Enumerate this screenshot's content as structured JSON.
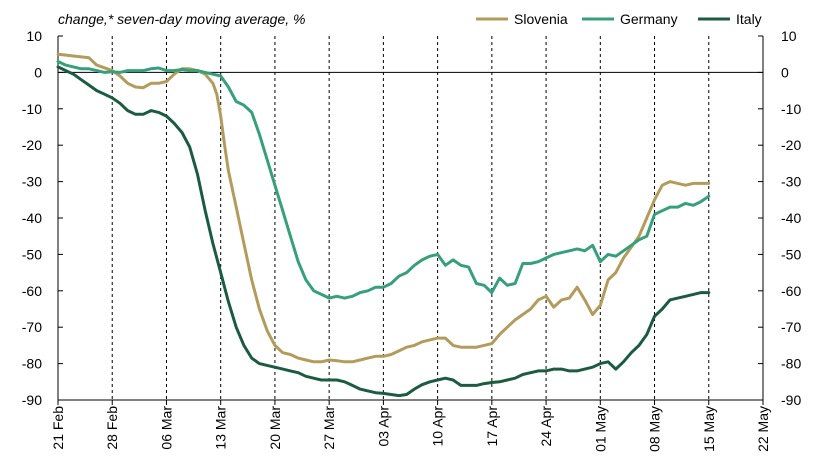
{
  "chart_data": {
    "type": "line",
    "y_axis_label": "change,* seven-day moving average, %",
    "ylim": [
      -90,
      10
    ],
    "y_ticks": [
      10,
      0,
      -10,
      -20,
      -30,
      -40,
      -50,
      -60,
      -70,
      -80,
      -90
    ],
    "x_tick_labels": [
      "21 Feb",
      "28 Feb",
      "06 Mar",
      "13 Mar",
      "20 Mar",
      "27 Mar",
      "03 Apr",
      "10 Apr",
      "17 Apr",
      "24 Apr",
      "01 May",
      "08 May",
      "15 May",
      "22 May"
    ],
    "x_tick_days": [
      0,
      7,
      14,
      21,
      28,
      35,
      42,
      49,
      56,
      63,
      70,
      77,
      84,
      91
    ],
    "xlim_days": [
      0,
      91
    ],
    "grid": "vertical dashed lines at each x tick",
    "legend_position": "top-right",
    "series": [
      {
        "name": "Slovenia",
        "color": "#b39b5b",
        "points": [
          [
            0,
            5
          ],
          [
            2,
            4.5
          ],
          [
            4,
            4
          ],
          [
            5,
            2
          ],
          [
            7,
            0.5
          ],
          [
            8,
            -1
          ],
          [
            9,
            -3
          ],
          [
            10,
            -4
          ],
          [
            11,
            -4.2
          ],
          [
            12,
            -3
          ],
          [
            13,
            -3
          ],
          [
            14,
            -2.5
          ],
          [
            15,
            -0.5
          ],
          [
            16,
            1
          ],
          [
            17,
            1
          ],
          [
            18,
            0.5
          ],
          [
            19,
            -0.5
          ],
          [
            20,
            -3
          ],
          [
            20.5,
            -6
          ],
          [
            21,
            -12
          ],
          [
            21.5,
            -20
          ],
          [
            22,
            -27
          ],
          [
            23,
            -37
          ],
          [
            24,
            -47
          ],
          [
            25,
            -57
          ],
          [
            26,
            -65
          ],
          [
            27,
            -71
          ],
          [
            28,
            -75
          ],
          [
            29,
            -77
          ],
          [
            30,
            -77.5
          ],
          [
            31,
            -78.5
          ],
          [
            32,
            -79
          ],
          [
            33,
            -79.5
          ],
          [
            34,
            -79.5
          ],
          [
            35,
            -79
          ],
          [
            36,
            -79.2
          ],
          [
            37,
            -79.5
          ],
          [
            38,
            -79.5
          ],
          [
            39,
            -79
          ],
          [
            40,
            -78.5
          ],
          [
            41,
            -78
          ],
          [
            42,
            -78
          ],
          [
            43,
            -77.5
          ],
          [
            44,
            -76.5
          ],
          [
            45,
            -75.5
          ],
          [
            46,
            -75
          ],
          [
            47,
            -74
          ],
          [
            48,
            -73.5
          ],
          [
            49,
            -73
          ],
          [
            50,
            -73
          ],
          [
            51,
            -75
          ],
          [
            52,
            -75.5
          ],
          [
            53,
            -75.5
          ],
          [
            54,
            -75.5
          ],
          [
            55,
            -75
          ],
          [
            56,
            -74.5
          ],
          [
            57,
            -72
          ],
          [
            58,
            -70
          ],
          [
            59,
            -68
          ],
          [
            60,
            -66.5
          ],
          [
            61,
            -65
          ],
          [
            62,
            -62.5
          ],
          [
            63,
            -61.5
          ],
          [
            64,
            -64.5
          ],
          [
            65,
            -62.5
          ],
          [
            66,
            -62
          ],
          [
            67,
            -59
          ],
          [
            68,
            -62.5
          ],
          [
            69,
            -66.5
          ],
          [
            70,
            -64
          ],
          [
            71,
            -57
          ],
          [
            72,
            -55
          ],
          [
            73,
            -51
          ],
          [
            74,
            -48
          ],
          [
            75,
            -45
          ],
          [
            76,
            -40
          ],
          [
            77,
            -35
          ],
          [
            78,
            -31
          ],
          [
            79,
            -30
          ],
          [
            80,
            -30.5
          ],
          [
            81,
            -31
          ],
          [
            82,
            -30.5
          ],
          [
            83,
            -30.5
          ],
          [
            84,
            -30.5
          ]
        ]
      },
      {
        "name": "Germany",
        "color": "#35a07a",
        "points": [
          [
            0,
            3
          ],
          [
            1,
            2
          ],
          [
            2,
            1.5
          ],
          [
            3,
            1
          ],
          [
            4,
            1
          ],
          [
            5,
            0.5
          ],
          [
            6,
            0
          ],
          [
            7,
            0.2
          ],
          [
            8,
            0
          ],
          [
            9,
            0.5
          ],
          [
            10,
            0.5
          ],
          [
            11,
            0.5
          ],
          [
            12,
            1
          ],
          [
            13,
            1.2
          ],
          [
            14,
            0.5
          ],
          [
            15,
            0.5
          ],
          [
            16,
            0.8
          ],
          [
            17,
            0.5
          ],
          [
            18,
            0.5
          ],
          [
            19,
            0
          ],
          [
            20,
            -0.5
          ],
          [
            21,
            -1
          ],
          [
            22,
            -4
          ],
          [
            23,
            -8
          ],
          [
            24,
            -9
          ],
          [
            25,
            -11
          ],
          [
            26,
            -17
          ],
          [
            27,
            -24
          ],
          [
            28,
            -31
          ],
          [
            29,
            -38
          ],
          [
            30,
            -45
          ],
          [
            31,
            -52
          ],
          [
            32,
            -57
          ],
          [
            33,
            -60
          ],
          [
            34,
            -61
          ],
          [
            35,
            -62
          ],
          [
            36,
            -61.5
          ],
          [
            37,
            -62
          ],
          [
            38,
            -61.5
          ],
          [
            39,
            -60.5
          ],
          [
            40,
            -60
          ],
          [
            41,
            -59
          ],
          [
            42,
            -59
          ],
          [
            43,
            -58
          ],
          [
            44,
            -56
          ],
          [
            45,
            -55
          ],
          [
            46,
            -53
          ],
          [
            47,
            -51.5
          ],
          [
            48,
            -50.5
          ],
          [
            49,
            -50
          ],
          [
            50,
            -53
          ],
          [
            51,
            -51.5
          ],
          [
            52,
            -53
          ],
          [
            53,
            -53.5
          ],
          [
            54,
            -58
          ],
          [
            55,
            -58.5
          ],
          [
            56,
            -60.5
          ],
          [
            57,
            -56.5
          ],
          [
            58,
            -58.5
          ],
          [
            59,
            -58
          ],
          [
            60,
            -52.5
          ],
          [
            61,
            -52.5
          ],
          [
            62,
            -52
          ],
          [
            63,
            -51
          ],
          [
            64,
            -50
          ],
          [
            65,
            -49.5
          ],
          [
            66,
            -49
          ],
          [
            67,
            -48.5
          ],
          [
            68,
            -49
          ],
          [
            69,
            -47.5
          ],
          [
            70,
            -52
          ],
          [
            71,
            -50
          ],
          [
            72,
            -50.5
          ],
          [
            73,
            -49
          ],
          [
            74,
            -47.5
          ],
          [
            75,
            -46
          ],
          [
            76,
            -45
          ],
          [
            77,
            -39
          ],
          [
            78,
            -38
          ],
          [
            79,
            -37
          ],
          [
            80,
            -37
          ],
          [
            81,
            -36
          ],
          [
            82,
            -36.5
          ],
          [
            83,
            -35.5
          ],
          [
            84,
            -34
          ]
        ]
      },
      {
        "name": "Italy",
        "color": "#1b5c40",
        "points": [
          [
            0,
            1.5
          ],
          [
            1,
            0.5
          ],
          [
            2,
            -0.5
          ],
          [
            3,
            -2
          ],
          [
            4,
            -3.5
          ],
          [
            5,
            -5
          ],
          [
            6,
            -6
          ],
          [
            7,
            -7
          ],
          [
            8,
            -8.5
          ],
          [
            9,
            -10.5
          ],
          [
            10,
            -11.5
          ],
          [
            11,
            -11.5
          ],
          [
            12,
            -10.5
          ],
          [
            13,
            -11
          ],
          [
            14,
            -12
          ],
          [
            15,
            -14
          ],
          [
            16,
            -16.5
          ],
          [
            17,
            -20.5
          ],
          [
            18,
            -28
          ],
          [
            19,
            -38
          ],
          [
            20,
            -47
          ],
          [
            21,
            -55
          ],
          [
            22,
            -63
          ],
          [
            23,
            -70
          ],
          [
            24,
            -75
          ],
          [
            25,
            -78.5
          ],
          [
            26,
            -80
          ],
          [
            27,
            -80.5
          ],
          [
            28,
            -81
          ],
          [
            29,
            -81.5
          ],
          [
            30,
            -82
          ],
          [
            31,
            -82.5
          ],
          [
            32,
            -83.5
          ],
          [
            33,
            -84
          ],
          [
            34,
            -84.5
          ],
          [
            35,
            -84.5
          ],
          [
            36,
            -84.5
          ],
          [
            37,
            -85
          ],
          [
            38,
            -86
          ],
          [
            39,
            -87
          ],
          [
            40,
            -87.5
          ],
          [
            41,
            -88
          ],
          [
            42,
            -88.2
          ],
          [
            43,
            -88.5
          ],
          [
            44,
            -88.8
          ],
          [
            45,
            -88.5
          ],
          [
            46,
            -87
          ],
          [
            47,
            -85.8
          ],
          [
            48,
            -85
          ],
          [
            49,
            -84.5
          ],
          [
            50,
            -84
          ],
          [
            51,
            -84.5
          ],
          [
            52,
            -86
          ],
          [
            53,
            -86
          ],
          [
            54,
            -86
          ],
          [
            55,
            -85.5
          ],
          [
            56,
            -85.2
          ],
          [
            57,
            -85
          ],
          [
            58,
            -84.5
          ],
          [
            59,
            -84
          ],
          [
            60,
            -83
          ],
          [
            61,
            -82.5
          ],
          [
            62,
            -82
          ],
          [
            63,
            -82
          ],
          [
            64,
            -81.5
          ],
          [
            65,
            -81.5
          ],
          [
            66,
            -82
          ],
          [
            67,
            -82
          ],
          [
            68,
            -81.5
          ],
          [
            69,
            -81
          ],
          [
            70,
            -80
          ],
          [
            71,
            -79.5
          ],
          [
            72,
            -81.5
          ],
          [
            73,
            -79.5
          ],
          [
            74,
            -77
          ],
          [
            75,
            -75
          ],
          [
            76,
            -72
          ],
          [
            77,
            -67
          ],
          [
            78,
            -65
          ],
          [
            79,
            -62.5
          ],
          [
            80,
            -62
          ],
          [
            81,
            -61.5
          ],
          [
            82,
            -61
          ],
          [
            83,
            -60.5
          ],
          [
            84,
            -60.5
          ]
        ]
      }
    ]
  }
}
